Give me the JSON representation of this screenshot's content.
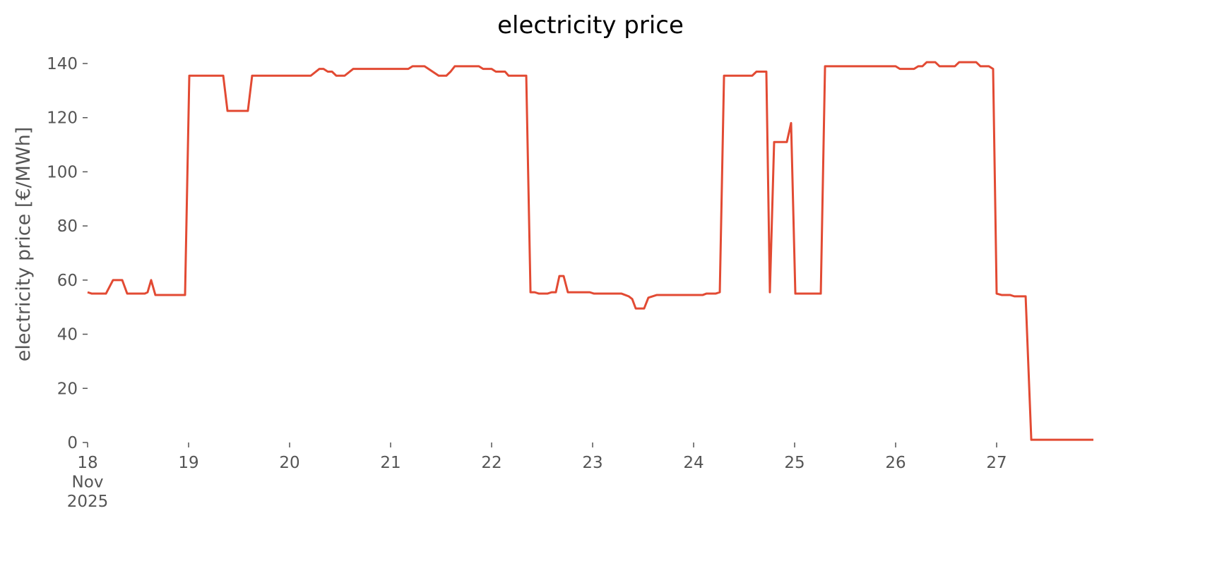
{
  "chart_data": {
    "type": "line",
    "title": "electricity price",
    "ylabel": "electricity price [€/MWh]",
    "xlim": [
      18,
      27.958
    ],
    "ylim": [
      0,
      140
    ],
    "xticks": [
      {
        "value": 18,
        "label": "18\nNov\n2025"
      },
      19,
      20,
      21,
      22,
      23,
      24,
      25,
      26,
      27
    ],
    "yticks": [
      0,
      20,
      40,
      60,
      80,
      100,
      120,
      140
    ],
    "series": [
      {
        "name": "electricity price",
        "color": "#e24a33",
        "x": [
          18.0,
          18.042,
          18.182,
          18.252,
          18.343,
          18.392,
          18.566,
          18.594,
          18.629,
          18.671,
          18.965,
          19.007,
          19.343,
          19.385,
          19.587,
          19.629,
          20.21,
          20.294,
          20.336,
          20.378,
          20.42,
          20.462,
          20.545,
          20.629,
          21.175,
          21.217,
          21.336,
          21.476,
          21.552,
          21.594,
          21.636,
          21.874,
          21.916,
          22.0,
          22.042,
          22.133,
          22.168,
          22.343,
          22.385,
          22.427,
          22.469,
          22.552,
          22.594,
          22.636,
          22.671,
          22.713,
          22.755,
          22.972,
          23.014,
          23.287,
          23.357,
          23.392,
          23.427,
          23.51,
          23.552,
          23.636,
          24.091,
          24.126,
          24.217,
          24.259,
          24.301,
          24.58,
          24.622,
          24.72,
          24.755,
          24.797,
          24.923,
          24.965,
          25.007,
          25.259,
          25.301,
          26.0,
          26.042,
          26.182,
          26.224,
          26.266,
          26.308,
          26.392,
          26.434,
          26.587,
          26.629,
          26.797,
          26.839,
          26.923,
          26.965,
          27.0,
          27.049,
          27.133,
          27.175,
          27.287,
          27.343,
          27.958
        ],
        "values": [
          55.5,
          55,
          55,
          60,
          60,
          55,
          55,
          55.5,
          60,
          54.5,
          54.5,
          135.5,
          135.5,
          122.5,
          122.5,
          135.5,
          135.5,
          138,
          138,
          137,
          137,
          135.5,
          135.5,
          138,
          138,
          139,
          139,
          135.5,
          135.5,
          137,
          139,
          139,
          138,
          138,
          137,
          137,
          135.5,
          135.5,
          55.5,
          55.5,
          55,
          55,
          55.5,
          55.5,
          61.5,
          61.5,
          55.5,
          55.5,
          55,
          55,
          54,
          53,
          49.5,
          49.5,
          53.5,
          54.5,
          54.5,
          55,
          55,
          55.5,
          135.5,
          135.5,
          137,
          137,
          55.5,
          111,
          111,
          118,
          55,
          55,
          139,
          139,
          138,
          138,
          139,
          139,
          140.5,
          140.5,
          139,
          139,
          140.5,
          140.5,
          139,
          139,
          138,
          55,
          54.5,
          54.5,
          54,
          54,
          1,
          1
        ]
      }
    ]
  }
}
